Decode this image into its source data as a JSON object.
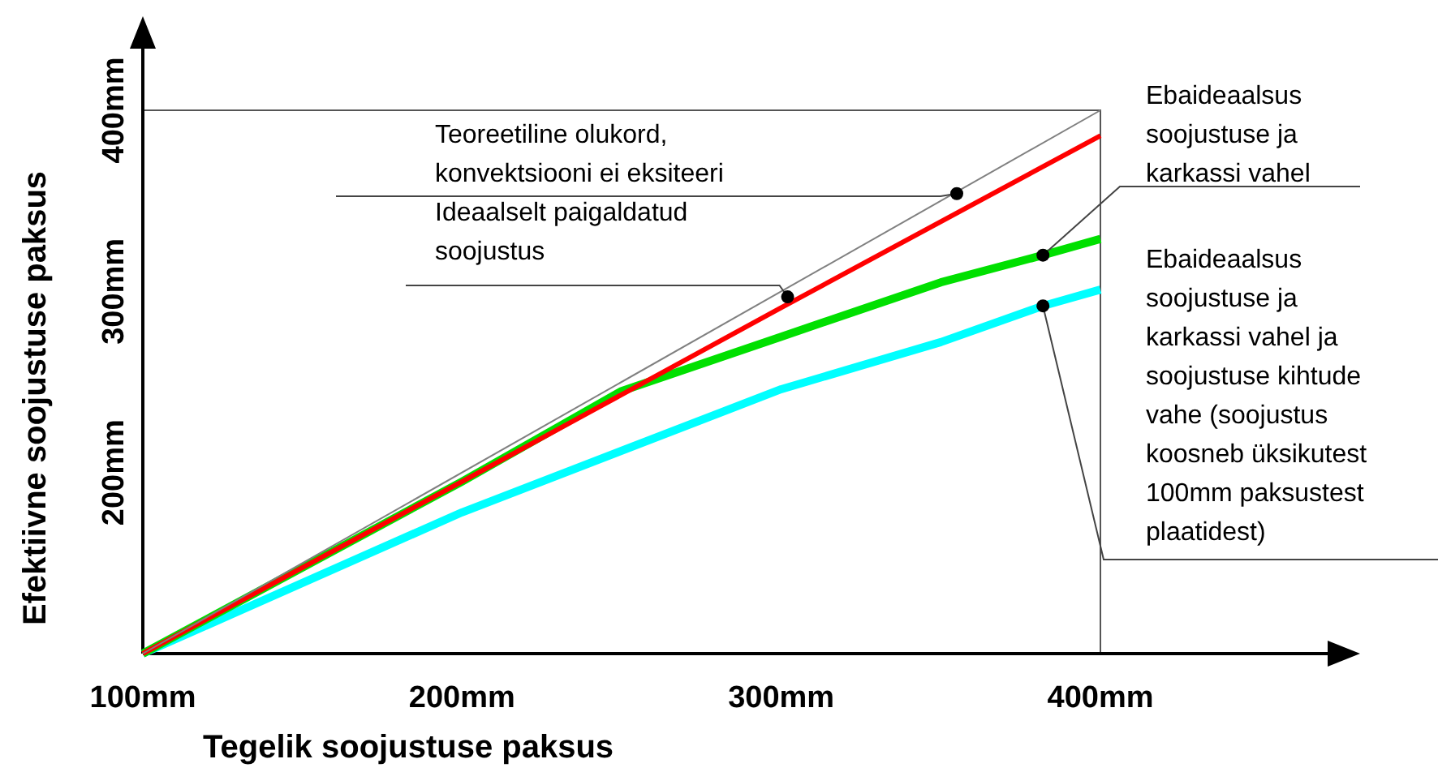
{
  "chart_data": {
    "type": "line",
    "xlabel": "Tegelik soojustuse paksus",
    "ylabel": "Efektiivne soojustuse paksus",
    "xlim": [
      100,
      400
    ],
    "ylim": [
      100,
      400
    ],
    "xticks": [
      {
        "value": 100,
        "label": "100mm"
      },
      {
        "value": 200,
        "label": "200mm"
      },
      {
        "value": 300,
        "label": "300mm"
      },
      {
        "value": 400,
        "label": "400mm"
      }
    ],
    "yticks": [
      {
        "value": 200,
        "label": "200mm"
      },
      {
        "value": 300,
        "label": "300mm"
      },
      {
        "value": 400,
        "label": "400mm"
      }
    ],
    "grid": false,
    "line_style": "solid",
    "series": [
      {
        "color": "#808080",
        "x": [
          100,
          400
        ],
        "values": [
          100,
          400
        ]
      },
      {
        "color": "#ff0000",
        "x": [
          100,
          200,
          300,
          400
        ],
        "values": [
          100,
          195,
          291,
          386
        ]
      },
      {
        "color": "#00e000",
        "x": [
          100,
          200,
          250,
          300,
          350,
          382,
          400
        ],
        "values": [
          100,
          195,
          245,
          275,
          305,
          320,
          329
        ]
      },
      {
        "color": "#00ffff",
        "x": [
          100,
          200,
          300,
          350,
          382,
          400
        ],
        "values": [
          100,
          178,
          246,
          272,
          292,
          301
        ]
      }
    ],
    "annotations": [
      {
        "text": "Teoreetiline olukord,\nkonvektsiooni ei eksiteeri",
        "x": 355,
        "y": 354
      },
      {
        "text": "Ideaalselt paigaldatud\nsoojustus",
        "x": 302,
        "y": 297
      },
      {
        "text": "Ebaideaalsus\nsoojustuse ja\nkarkassi vahel",
        "x": 382,
        "y": 320
      },
      {
        "text": "Ebaideaalsus\nsoojustuse ja\nkarkassi vahel ja\nsoojustuse kihtude\nvahe (soojustus\nkoosneb üksikutest\n100mm paksustest\nplaatidest)",
        "x": 382,
        "y": 292
      }
    ]
  }
}
